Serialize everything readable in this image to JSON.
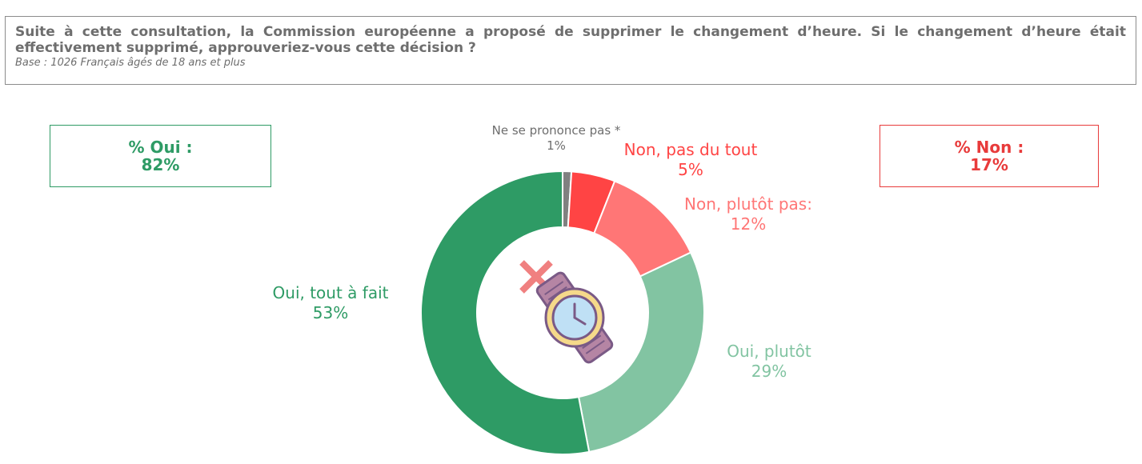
{
  "header": {
    "question": "Suite à cette consultation, la Commission européenne a proposé de supprimer le changement d’heure. Si le changement d’heure était effectivement supprimé, approuveriez-vous cette décision ?",
    "base": "Base : 1026 Français âgés de 18 ans et plus"
  },
  "totals": {
    "yes_label": "% Oui :",
    "yes_value": "82%",
    "no_label": "% Non :",
    "no_value": "17%"
  },
  "colors": {
    "oui_tout_a_fait": "#2e9b65",
    "oui_plutot": "#82c4a2",
    "non_plutot_pas": "#ff7676",
    "non_pas_du_tout": "#ff4444",
    "nsp": "#808080",
    "icon_cross": "#f08080"
  },
  "icon": "watch-icon",
  "chart_data": {
    "type": "pie",
    "variant": "donut",
    "start": "top",
    "direction": "clockwise",
    "slices": [
      {
        "name": "Ne se prononce pas *",
        "value": 1,
        "label": "1%"
      },
      {
        "name": "Non, pas du tout",
        "value": 5,
        "label": "5%"
      },
      {
        "name": "Non, plutôt pas:",
        "value": 12,
        "label": "12%"
      },
      {
        "name": "Oui, plutôt",
        "value": 29,
        "label": "29%"
      },
      {
        "name": "Oui, tout à fait",
        "value": 53,
        "label": "53%"
      }
    ]
  }
}
